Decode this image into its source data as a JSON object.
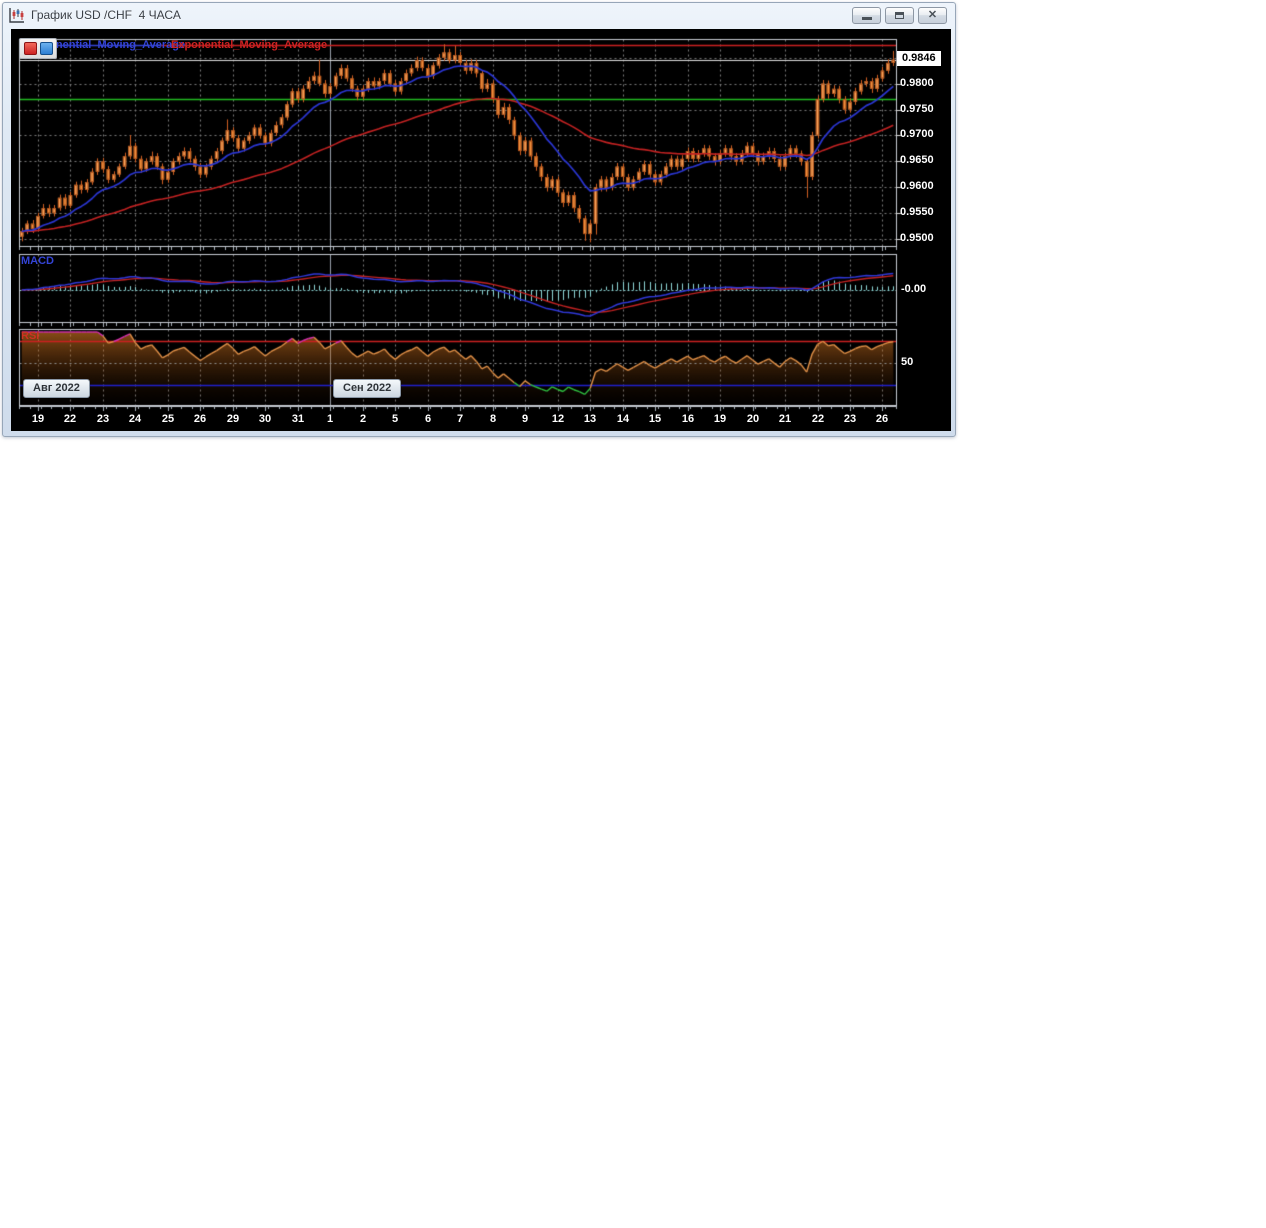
{
  "window": {
    "title": "График USD /CHF  4 ЧАСА",
    "close_glyph": "✕"
  },
  "legend": {
    "ema_blue": {
      "label": "Exponential_Moving_Average",
      "color": "#3444d6"
    },
    "ema_red": {
      "label": "Exponential_Moving_Average",
      "color": "#cc2222"
    }
  },
  "price_axis": {
    "current_price": "0.9846",
    "tick_labels": [
      "0.9800",
      "0.9750",
      "0.9700",
      "0.9650",
      "0.9600",
      "0.9550",
      "0.9500"
    ]
  },
  "time_axis": {
    "day_labels": [
      "19",
      "22",
      "23",
      "24",
      "25",
      "26",
      "29",
      "30",
      "31",
      "1",
      "2",
      "5",
      "6",
      "7",
      "8",
      "9",
      "12",
      "13",
      "14",
      "15",
      "16",
      "19",
      "20",
      "21",
      "22",
      "23",
      "26"
    ]
  },
  "macd_panel": {
    "label": "MACD",
    "axis_label": "-0.00"
  },
  "rsi_panel": {
    "label": "RSI",
    "axis_label": "50"
  },
  "month_badges": {
    "aug": "Авг 2022",
    "sep": "Сен 2022"
  },
  "chart_data": {
    "type": "candlestick",
    "instrument": "USD/CHF",
    "timeframe": "4 ЧАСА",
    "candles_per_day": 6,
    "day_labels": [
      "19",
      "22",
      "23",
      "24",
      "25",
      "26",
      "29",
      "30",
      "31",
      "1",
      "2",
      "5",
      "6",
      "7",
      "8",
      "9",
      "12",
      "13",
      "14",
      "15",
      "16",
      "19",
      "20",
      "21",
      "22",
      "23",
      "26"
    ],
    "september_start_day_index": 9,
    "price_unit": 0.0001,
    "ylim": [
      0.9487,
      0.9886
    ],
    "grid_price_levels": [
      0.985,
      0.98,
      0.975,
      0.97,
      0.965,
      0.96,
      0.955,
      0.95
    ],
    "hlines": {
      "resistance_red": 0.9874,
      "current_white": 0.9846,
      "support_green": 0.9771
    },
    "indicators": {
      "ema_fast_period": 13,
      "ema_slow_period": 55,
      "macd": {
        "fast": 12,
        "slow": 26,
        "signal": 9,
        "zero_label": "-0.00"
      },
      "rsi": {
        "period": 14,
        "overbought": 70,
        "midline": 50,
        "oversold": 30
      }
    },
    "colors": {
      "candle_body": "#f0923e",
      "candle_body_light": "#f8a65c",
      "candle_edge": "#b5541c",
      "wick": "#cf5e22",
      "ema_fast": "#2a35d0",
      "ema_slow": "#c32222",
      "macd_line": "#3038d8",
      "macd_signal": "#c32222",
      "macd_hist": "#8fd8d8",
      "rsi_line": "#e09048",
      "rsi_overbought": "#d530b0",
      "rsi_oversold": "#30c040",
      "rsi_level_red": "#cc2020",
      "rsi_level_blue": "#2020cc",
      "grid": "#7d7d7d",
      "panel_border": "#c8ccd4",
      "month_separator": "#9aa2ac"
    },
    "candles": [
      [
        9505,
        9522,
        9496,
        9515
      ],
      [
        9515,
        9536,
        9510,
        9530
      ],
      [
        9530,
        9537,
        9512,
        9520
      ],
      [
        9520,
        9551,
        9515,
        9545
      ],
      [
        9545,
        9568,
        9540,
        9560
      ],
      [
        9560,
        9567,
        9543,
        9550
      ],
      [
        9550,
        9566,
        9544,
        9560
      ],
      [
        9560,
        9586,
        9555,
        9580
      ],
      [
        9580,
        9587,
        9558,
        9565
      ],
      [
        9565,
        9591,
        9560,
        9585
      ],
      [
        9585,
        9611,
        9580,
        9605
      ],
      [
        9605,
        9613,
        9588,
        9595
      ],
      [
        9595,
        9616,
        9590,
        9610
      ],
      [
        9610,
        9637,
        9605,
        9630
      ],
      [
        9630,
        9656,
        9624,
        9650
      ],
      [
        9650,
        9657,
        9628,
        9635
      ],
      [
        9635,
        9641,
        9608,
        9615
      ],
      [
        9615,
        9631,
        9610,
        9625
      ],
      [
        9625,
        9646,
        9620,
        9640
      ],
      [
        9640,
        9667,
        9635,
        9660
      ],
      [
        9660,
        9701,
        9654,
        9680
      ],
      [
        9680,
        9686,
        9648,
        9655
      ],
      [
        9655,
        9661,
        9628,
        9635
      ],
      [
        9635,
        9656,
        9630,
        9650
      ],
      [
        9650,
        9669,
        9644,
        9660
      ],
      [
        9660,
        9666,
        9634,
        9640
      ],
      [
        9640,
        9646,
        9606,
        9615
      ],
      [
        9615,
        9637,
        9609,
        9630
      ],
      [
        9630,
        9656,
        9624,
        9650
      ],
      [
        9650,
        9667,
        9644,
        9660
      ],
      [
        9660,
        9677,
        9654,
        9670
      ],
      [
        9670,
        9676,
        9648,
        9655
      ],
      [
        9655,
        9661,
        9632,
        9640
      ],
      [
        9640,
        9647,
        9618,
        9625
      ],
      [
        9625,
        9646,
        9619,
        9640
      ],
      [
        9640,
        9661,
        9634,
        9655
      ],
      [
        9655,
        9676,
        9649,
        9670
      ],
      [
        9670,
        9696,
        9664,
        9690
      ],
      [
        9690,
        9731,
        9684,
        9710
      ],
      [
        9710,
        9716,
        9688,
        9695
      ],
      [
        9695,
        9701,
        9668,
        9675
      ],
      [
        9675,
        9696,
        9669,
        9690
      ],
      [
        9690,
        9707,
        9684,
        9700
      ],
      [
        9700,
        9721,
        9694,
        9715
      ],
      [
        9715,
        9722,
        9694,
        9700
      ],
      [
        9700,
        9706,
        9678,
        9685
      ],
      [
        9685,
        9711,
        9679,
        9705
      ],
      [
        9705,
        9727,
        9699,
        9720
      ],
      [
        9720,
        9741,
        9714,
        9735
      ],
      [
        9735,
        9766,
        9729,
        9760
      ],
      [
        9760,
        9791,
        9754,
        9785
      ],
      [
        9785,
        9792,
        9763,
        9770
      ],
      [
        9770,
        9797,
        9764,
        9790
      ],
      [
        9790,
        9813,
        9784,
        9805
      ],
      [
        9805,
        9823,
        9799,
        9815
      ],
      [
        9815,
        9846,
        9795,
        9800
      ],
      [
        9800,
        9807,
        9773,
        9780
      ],
      [
        9780,
        9801,
        9774,
        9795
      ],
      [
        9795,
        9821,
        9789,
        9815
      ],
      [
        9815,
        9837,
        9809,
        9830
      ],
      [
        9830,
        9836,
        9804,
        9810
      ],
      [
        9810,
        9816,
        9784,
        9790
      ],
      [
        9790,
        9796,
        9768,
        9775
      ],
      [
        9775,
        9797,
        9769,
        9790
      ],
      [
        9790,
        9811,
        9784,
        9805
      ],
      [
        9805,
        9812,
        9788,
        9795
      ],
      [
        9795,
        9811,
        9789,
        9805
      ],
      [
        9805,
        9827,
        9799,
        9820
      ],
      [
        9820,
        9826,
        9794,
        9800
      ],
      [
        9800,
        9807,
        9778,
        9785
      ],
      [
        9785,
        9811,
        9779,
        9805
      ],
      [
        9805,
        9827,
        9799,
        9820
      ],
      [
        9820,
        9837,
        9814,
        9830
      ],
      [
        9830,
        9852,
        9824,
        9845
      ],
      [
        9845,
        9851,
        9824,
        9830
      ],
      [
        9830,
        9837,
        9808,
        9815
      ],
      [
        9815,
        9841,
        9809,
        9835
      ],
      [
        9835,
        9857,
        9829,
        9850
      ],
      [
        9850,
        9876,
        9844,
        9860
      ],
      [
        9860,
        9867,
        9839,
        9845
      ],
      [
        9845,
        9873,
        9839,
        9855
      ],
      [
        9855,
        9861,
        9833,
        9840
      ],
      [
        9840,
        9846,
        9818,
        9825
      ],
      [
        9825,
        9847,
        9819,
        9840
      ],
      [
        9840,
        9846,
        9812,
        9820
      ],
      [
        9820,
        9826,
        9783,
        9790
      ],
      [
        9790,
        9809,
        9784,
        9800
      ],
      [
        9800,
        9806,
        9763,
        9770
      ],
      [
        9770,
        9776,
        9733,
        9740
      ],
      [
        9740,
        9763,
        9734,
        9755
      ],
      [
        9755,
        9761,
        9722,
        9730
      ],
      [
        9730,
        9736,
        9692,
        9700
      ],
      [
        9700,
        9706,
        9662,
        9670
      ],
      [
        9670,
        9697,
        9664,
        9690
      ],
      [
        9690,
        9696,
        9652,
        9660
      ],
      [
        9660,
        9667,
        9632,
        9640
      ],
      [
        9640,
        9646,
        9612,
        9620
      ],
      [
        9620,
        9626,
        9592,
        9600
      ],
      [
        9600,
        9622,
        9594,
        9615
      ],
      [
        9615,
        9621,
        9582,
        9590
      ],
      [
        9590,
        9596,
        9562,
        9570
      ],
      [
        9570,
        9592,
        9564,
        9585
      ],
      [
        9585,
        9591,
        9552,
        9560
      ],
      [
        9560,
        9566,
        9532,
        9540
      ],
      [
        9540,
        9546,
        9497,
        9510
      ],
      [
        9510,
        9537,
        9494,
        9530
      ],
      [
        9530,
        9607,
        9509,
        9600
      ],
      [
        9600,
        9622,
        9592,
        9615
      ],
      [
        9615,
        9621,
        9592,
        9600
      ],
      [
        9600,
        9627,
        9594,
        9620
      ],
      [
        9620,
        9647,
        9614,
        9640
      ],
      [
        9640,
        9646,
        9613,
        9620
      ],
      [
        9620,
        9626,
        9593,
        9600
      ],
      [
        9600,
        9622,
        9594,
        9615
      ],
      [
        9615,
        9637,
        9609,
        9630
      ],
      [
        9630,
        9652,
        9624,
        9645
      ],
      [
        9645,
        9651,
        9618,
        9625
      ],
      [
        9625,
        9631,
        9603,
        9610
      ],
      [
        9610,
        9632,
        9604,
        9625
      ],
      [
        9625,
        9647,
        9619,
        9640
      ],
      [
        9640,
        9662,
        9634,
        9655
      ],
      [
        9655,
        9661,
        9633,
        9640
      ],
      [
        9640,
        9662,
        9634,
        9655
      ],
      [
        9655,
        9677,
        9649,
        9670
      ],
      [
        9670,
        9676,
        9648,
        9655
      ],
      [
        9655,
        9672,
        9649,
        9665
      ],
      [
        9665,
        9682,
        9659,
        9675
      ],
      [
        9675,
        9681,
        9653,
        9660
      ],
      [
        9660,
        9666,
        9642,
        9650
      ],
      [
        9650,
        9672,
        9644,
        9665
      ],
      [
        9665,
        9682,
        9659,
        9675
      ],
      [
        9675,
        9681,
        9652,
        9660
      ],
      [
        9660,
        9666,
        9642,
        9650
      ],
      [
        9650,
        9672,
        9644,
        9665
      ],
      [
        9665,
        9687,
        9659,
        9680
      ],
      [
        9680,
        9686,
        9658,
        9665
      ],
      [
        9665,
        9671,
        9642,
        9650
      ],
      [
        9650,
        9667,
        9644,
        9660
      ],
      [
        9660,
        9677,
        9654,
        9670
      ],
      [
        9670,
        9676,
        9648,
        9655
      ],
      [
        9655,
        9661,
        9632,
        9640
      ],
      [
        9640,
        9667,
        9634,
        9660
      ],
      [
        9660,
        9682,
        9654,
        9675
      ],
      [
        9675,
        9681,
        9657,
        9665
      ],
      [
        9665,
        9671,
        9642,
        9650
      ],
      [
        9650,
        9656,
        9580,
        9620
      ],
      [
        9620,
        9707,
        9614,
        9700
      ],
      [
        9700,
        9777,
        9694,
        9770
      ],
      [
        9770,
        9807,
        9764,
        9800
      ],
      [
        9800,
        9806,
        9771,
        9780
      ],
      [
        9780,
        9797,
        9774,
        9790
      ],
      [
        9790,
        9796,
        9762,
        9770
      ],
      [
        9770,
        9776,
        9742,
        9750
      ],
      [
        9750,
        9772,
        9744,
        9765
      ],
      [
        9765,
        9792,
        9759,
        9785
      ],
      [
        9785,
        9807,
        9779,
        9800
      ],
      [
        9800,
        9812,
        9794,
        9805
      ],
      [
        9805,
        9811,
        9782,
        9790
      ],
      [
        9790,
        9817,
        9784,
        9810
      ],
      [
        9810,
        9832,
        9804,
        9825
      ],
      [
        9825,
        9847,
        9819,
        9840
      ],
      [
        9840,
        9863,
        9834,
        9846
      ]
    ]
  }
}
